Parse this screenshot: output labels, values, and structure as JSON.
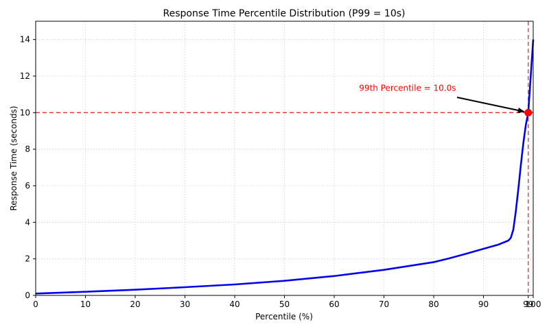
{
  "chart_data": {
    "type": "line",
    "title": "Response Time Percentile Distribution (P99 = 10s)",
    "xlabel": "Percentile (%)",
    "ylabel": "Response Time (seconds)",
    "xlim": [
      0,
      100
    ],
    "ylim": [
      0,
      15
    ],
    "grid": true,
    "x_ticks": [
      0,
      10,
      20,
      30,
      40,
      50,
      60,
      70,
      80,
      90,
      99,
      100
    ],
    "y_ticks": [
      0,
      2,
      4,
      6,
      8,
      10,
      12,
      14
    ],
    "series": [
      {
        "color": "#0000ee",
        "x": [
          0,
          10,
          20,
          30,
          40,
          50,
          60,
          70,
          80,
          83,
          86,
          90,
          93,
          95,
          95.5,
          96,
          96.5,
          97,
          97.5,
          98,
          98.5,
          99,
          99.5,
          100
        ],
        "y": [
          0.1,
          0.2,
          0.31,
          0.45,
          0.6,
          0.8,
          1.06,
          1.4,
          1.82,
          2.02,
          2.24,
          2.55,
          2.78,
          3.0,
          3.15,
          3.6,
          4.6,
          5.8,
          7.1,
          8.3,
          9.3,
          10.0,
          12.0,
          14.0
        ]
      }
    ],
    "reference_lines": {
      "x": 99,
      "y": 10,
      "color": "#e03030"
    },
    "marker": {
      "x": 99,
      "y": 10,
      "color": "#ff0000"
    },
    "annotation": {
      "text": "99th Percentile = 10.0s",
      "x": 99,
      "y": 10,
      "text_x": 65,
      "text_y": 11.2,
      "color": "#ff0000"
    }
  }
}
